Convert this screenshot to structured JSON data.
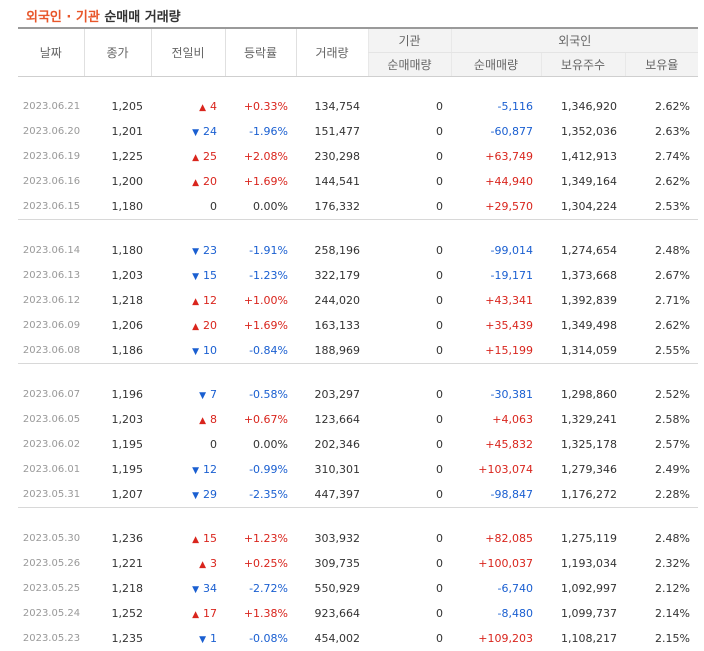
{
  "title": {
    "part1": "외국인 · 기관",
    "part2": "순매매 거래량"
  },
  "headers": {
    "date": "날짜",
    "close": "종가",
    "change": "전일비",
    "rate": "등락률",
    "volume": "거래량",
    "inst_group": "기관",
    "inst_net": "순매매량",
    "foreign_group": "외국인",
    "foreign_net": "순매매량",
    "foreign_hold": "보유주수",
    "foreign_ratio": "보유율"
  },
  "groups": [
    [
      {
        "date": "2023.06.21",
        "close": "1,205",
        "dir": "up",
        "change": "4",
        "rate": "+0.33%",
        "volume": "134,754",
        "inst": "0",
        "fnet": "-5,116",
        "fhold": "1,346,920",
        "fratio": "2.62%"
      },
      {
        "date": "2023.06.20",
        "close": "1,201",
        "dir": "down",
        "change": "24",
        "rate": "-1.96%",
        "volume": "151,477",
        "inst": "0",
        "fnet": "-60,877",
        "fhold": "1,352,036",
        "fratio": "2.63%"
      },
      {
        "date": "2023.06.19",
        "close": "1,225",
        "dir": "up",
        "change": "25",
        "rate": "+2.08%",
        "volume": "230,298",
        "inst": "0",
        "fnet": "+63,749",
        "fhold": "1,412,913",
        "fratio": "2.74%"
      },
      {
        "date": "2023.06.16",
        "close": "1,200",
        "dir": "up",
        "change": "20",
        "rate": "+1.69%",
        "volume": "144,541",
        "inst": "0",
        "fnet": "+44,940",
        "fhold": "1,349,164",
        "fratio": "2.62%"
      },
      {
        "date": "2023.06.15",
        "close": "1,180",
        "dir": "flat",
        "change": "0",
        "rate": "0.00%",
        "volume": "176,332",
        "inst": "0",
        "fnet": "+29,570",
        "fhold": "1,304,224",
        "fratio": "2.53%"
      }
    ],
    [
      {
        "date": "2023.06.14",
        "close": "1,180",
        "dir": "down",
        "change": "23",
        "rate": "-1.91%",
        "volume": "258,196",
        "inst": "0",
        "fnet": "-99,014",
        "fhold": "1,274,654",
        "fratio": "2.48%"
      },
      {
        "date": "2023.06.13",
        "close": "1,203",
        "dir": "down",
        "change": "15",
        "rate": "-1.23%",
        "volume": "322,179",
        "inst": "0",
        "fnet": "-19,171",
        "fhold": "1,373,668",
        "fratio": "2.67%"
      },
      {
        "date": "2023.06.12",
        "close": "1,218",
        "dir": "up",
        "change": "12",
        "rate": "+1.00%",
        "volume": "244,020",
        "inst": "0",
        "fnet": "+43,341",
        "fhold": "1,392,839",
        "fratio": "2.71%"
      },
      {
        "date": "2023.06.09",
        "close": "1,206",
        "dir": "up",
        "change": "20",
        "rate": "+1.69%",
        "volume": "163,133",
        "inst": "0",
        "fnet": "+35,439",
        "fhold": "1,349,498",
        "fratio": "2.62%"
      },
      {
        "date": "2023.06.08",
        "close": "1,186",
        "dir": "down",
        "change": "10",
        "rate": "-0.84%",
        "volume": "188,969",
        "inst": "0",
        "fnet": "+15,199",
        "fhold": "1,314,059",
        "fratio": "2.55%"
      }
    ],
    [
      {
        "date": "2023.06.07",
        "close": "1,196",
        "dir": "down",
        "change": "7",
        "rate": "-0.58%",
        "volume": "203,297",
        "inst": "0",
        "fnet": "-30,381",
        "fhold": "1,298,860",
        "fratio": "2.52%"
      },
      {
        "date": "2023.06.05",
        "close": "1,203",
        "dir": "up",
        "change": "8",
        "rate": "+0.67%",
        "volume": "123,664",
        "inst": "0",
        "fnet": "+4,063",
        "fhold": "1,329,241",
        "fratio": "2.58%"
      },
      {
        "date": "2023.06.02",
        "close": "1,195",
        "dir": "flat",
        "change": "0",
        "rate": "0.00%",
        "volume": "202,346",
        "inst": "0",
        "fnet": "+45,832",
        "fhold": "1,325,178",
        "fratio": "2.57%"
      },
      {
        "date": "2023.06.01",
        "close": "1,195",
        "dir": "down",
        "change": "12",
        "rate": "-0.99%",
        "volume": "310,301",
        "inst": "0",
        "fnet": "+103,074",
        "fhold": "1,279,346",
        "fratio": "2.49%"
      },
      {
        "date": "2023.05.31",
        "close": "1,207",
        "dir": "down",
        "change": "29",
        "rate": "-2.35%",
        "volume": "447,397",
        "inst": "0",
        "fnet": "-98,847",
        "fhold": "1,176,272",
        "fratio": "2.28%"
      }
    ],
    [
      {
        "date": "2023.05.30",
        "close": "1,236",
        "dir": "up",
        "change": "15",
        "rate": "+1.23%",
        "volume": "303,932",
        "inst": "0",
        "fnet": "+82,085",
        "fhold": "1,275,119",
        "fratio": "2.48%"
      },
      {
        "date": "2023.05.26",
        "close": "1,221",
        "dir": "up",
        "change": "3",
        "rate": "+0.25%",
        "volume": "309,735",
        "inst": "0",
        "fnet": "+100,037",
        "fhold": "1,193,034",
        "fratio": "2.32%"
      },
      {
        "date": "2023.05.25",
        "close": "1,218",
        "dir": "down",
        "change": "34",
        "rate": "-2.72%",
        "volume": "550,929",
        "inst": "0",
        "fnet": "-6,740",
        "fhold": "1,092,997",
        "fratio": "2.12%"
      },
      {
        "date": "2023.05.24",
        "close": "1,252",
        "dir": "up",
        "change": "17",
        "rate": "+1.38%",
        "volume": "923,664",
        "inst": "0",
        "fnet": "-8,480",
        "fhold": "1,099,737",
        "fratio": "2.14%"
      },
      {
        "date": "2023.05.23",
        "close": "1,235",
        "dir": "down",
        "change": "1",
        "rate": "-0.08%",
        "volume": "454,002",
        "inst": "0",
        "fnet": "+109,203",
        "fhold": "1,108,217",
        "fratio": "2.15%"
      }
    ]
  ],
  "colors": {
    "up": "#d9251d",
    "down": "#1a5fd1",
    "title_accent": "#e8562a"
  },
  "icons": {
    "up": "triangle-up-icon",
    "down": "triangle-down-icon"
  }
}
